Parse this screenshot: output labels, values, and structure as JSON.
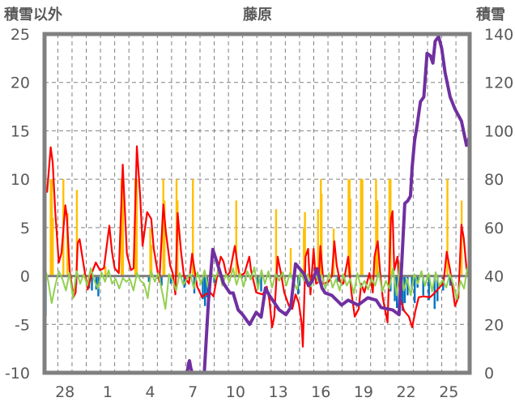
{
  "chart_data": {
    "type": "line",
    "title": "藤原",
    "ylabel": "積雪以外",
    "y2label": "積雪",
    "ylim": [
      -10,
      25
    ],
    "y2lim": [
      0,
      140
    ],
    "xlim_days": [
      -0.93,
      28.97
    ],
    "grid": true,
    "yticks": [
      25,
      20,
      15,
      10,
      5,
      0,
      -5,
      -10
    ],
    "y2ticks": [
      140,
      120,
      100,
      80,
      60,
      40,
      20,
      0
    ],
    "xticks": [
      {
        "day": 0.5,
        "label": "28"
      },
      {
        "day": 3.5,
        "label": "1"
      },
      {
        "day": 6.5,
        "label": "4"
      },
      {
        "day": 9.5,
        "label": "7"
      },
      {
        "day": 12.5,
        "label": "10"
      },
      {
        "day": 15.5,
        "label": "13"
      },
      {
        "day": 18.5,
        "label": "16"
      },
      {
        "day": 21.5,
        "label": "19"
      },
      {
        "day": 24.5,
        "label": "22"
      },
      {
        "day": 27.5,
        "label": "25"
      }
    ],
    "colors": {
      "red": "#ff0000",
      "green": "#92d050",
      "purple": "#7030a0",
      "orange": "#ffc000",
      "blue": "#0070c0",
      "axis": "#808080"
    },
    "series": [
      {
        "name": "orange-bars",
        "kind": "bar",
        "axis": "left",
        "color": "#ffc000",
        "points": [
          [
            -0.5,
            10
          ],
          [
            -0.42,
            10
          ],
          [
            -0.35,
            6.0
          ],
          [
            0.39,
            10
          ],
          [
            0.68,
            6.5
          ],
          [
            1.34,
            8.9
          ],
          [
            3.35,
            1.0
          ],
          [
            4.48,
            10
          ],
          [
            4.58,
            10
          ],
          [
            5.45,
            10
          ],
          [
            5.55,
            10
          ],
          [
            6.5,
            4.9
          ],
          [
            6.58,
            3.2
          ],
          [
            7.42,
            10
          ],
          [
            7.5,
            7.8
          ],
          [
            8.35,
            10
          ],
          [
            8.42,
            7.8
          ],
          [
            9.5,
            10
          ],
          [
            12.55,
            7.8
          ],
          [
            15.35,
            6.9
          ],
          [
            16.38,
            2.9
          ],
          [
            17.3,
            4.9
          ],
          [
            17.38,
            6.6
          ],
          [
            18.3,
            6.9
          ],
          [
            18.5,
            10
          ],
          [
            18.55,
            8.5
          ],
          [
            19.4,
            4.9
          ],
          [
            20.45,
            10
          ],
          [
            20.52,
            10
          ],
          [
            20.58,
            8
          ],
          [
            21.32,
            10
          ],
          [
            21.42,
            10
          ],
          [
            22.38,
            10
          ],
          [
            22.48,
            7.8
          ],
          [
            23.32,
            10
          ],
          [
            23.4,
            10
          ],
          [
            27.4,
            10
          ],
          [
            28.4,
            7.8
          ]
        ]
      },
      {
        "name": "blue-bars",
        "kind": "bar",
        "axis": "left",
        "color": "#0070c0",
        "points": [
          [
            -0.9,
            -5.0
          ],
          [
            -0.85,
            -4.1
          ],
          [
            1.3,
            -0.9
          ],
          [
            2.2,
            -1.3
          ],
          [
            2.4,
            -1.5
          ],
          [
            2.7,
            -1.4
          ],
          [
            2.85,
            -2.1
          ],
          [
            6.4,
            -0.6
          ],
          [
            7.3,
            -1.0
          ],
          [
            7.95,
            -0.8
          ],
          [
            8.9,
            -1.2
          ],
          [
            9.6,
            -1.8
          ],
          [
            10.2,
            -2.4
          ],
          [
            10.35,
            -3.1
          ],
          [
            10.5,
            -2.2
          ],
          [
            11.0,
            -0.7
          ],
          [
            13.2,
            -0.5
          ],
          [
            14.05,
            -0.9
          ],
          [
            14.3,
            -1.6
          ],
          [
            16.9,
            -1.9
          ],
          [
            17.0,
            -1.0
          ],
          [
            19.7,
            -0.6
          ],
          [
            23.4,
            -1.6
          ],
          [
            23.7,
            -2.6
          ],
          [
            23.85,
            -3.3
          ],
          [
            24.05,
            -2.2
          ],
          [
            24.25,
            -3.6
          ],
          [
            24.4,
            -2.8
          ],
          [
            24.6,
            -2.0
          ],
          [
            24.9,
            -1.4
          ],
          [
            25.1,
            -2.8
          ],
          [
            25.3,
            -1.2
          ],
          [
            25.7,
            -2.0
          ],
          [
            26.1,
            -2.5
          ],
          [
            26.5,
            -3.4
          ],
          [
            26.7,
            -2.6
          ],
          [
            27.1,
            -1.5
          ],
          [
            27.6,
            -1.0
          ],
          [
            28.9,
            -1.6
          ]
        ]
      },
      {
        "name": "red-line",
        "kind": "line",
        "axis": "left",
        "color": "#ff0000",
        "points": [
          [
            -0.99,
            9.0
          ],
          [
            -0.75,
            8.7
          ],
          [
            -0.5,
            13.3
          ],
          [
            -0.36,
            11.7
          ],
          [
            -0.18,
            6.7
          ],
          [
            0.07,
            1.4
          ],
          [
            0.26,
            2.4
          ],
          [
            0.53,
            7.3
          ],
          [
            0.64,
            6.1
          ],
          [
            0.83,
            0.6
          ],
          [
            1.1,
            -2.2
          ],
          [
            1.25,
            -1.7
          ],
          [
            1.4,
            3.4
          ],
          [
            1.53,
            3.8
          ],
          [
            1.67,
            2.5
          ],
          [
            1.91,
            0.3
          ],
          [
            2.1,
            -1.4
          ],
          [
            2.39,
            0.3
          ],
          [
            2.67,
            1.4
          ],
          [
            2.96,
            0.6
          ],
          [
            3.24,
            0.8
          ],
          [
            3.62,
            5.2
          ],
          [
            3.81,
            2.5
          ],
          [
            4.0,
            0.8
          ],
          [
            4.29,
            0.3
          ],
          [
            4.57,
            11.5
          ],
          [
            4.86,
            2.3
          ],
          [
            5.14,
            0.6
          ],
          [
            5.33,
            0.8
          ],
          [
            5.56,
            13.4
          ],
          [
            5.8,
            8.1
          ],
          [
            5.96,
            3.1
          ],
          [
            6.28,
            6.6
          ],
          [
            6.57,
            5.9
          ],
          [
            6.75,
            2.8
          ],
          [
            6.94,
            1.1
          ],
          [
            7.14,
            -0.6
          ],
          [
            7.42,
            7.4
          ],
          [
            7.6,
            4.5
          ],
          [
            7.9,
            1.1
          ],
          [
            8.08,
            0.3
          ],
          [
            8.27,
            -1.9
          ],
          [
            8.43,
            6.5
          ],
          [
            8.67,
            2.5
          ],
          [
            8.87,
            0
          ],
          [
            9.22,
            -0.8
          ],
          [
            9.45,
            2.3
          ],
          [
            9.57,
            1.1
          ],
          [
            9.8,
            -1.1
          ],
          [
            10.14,
            -2.2
          ],
          [
            10.37,
            -1.9
          ],
          [
            10.72,
            -1.7
          ],
          [
            10.95,
            -2.1
          ],
          [
            11.3,
            0.8
          ],
          [
            11.46,
            2.0
          ],
          [
            11.65,
            1.5
          ],
          [
            11.88,
            0
          ],
          [
            12.1,
            0.4
          ],
          [
            12.45,
            3.1
          ],
          [
            12.62,
            1.4
          ],
          [
            12.79,
            0
          ],
          [
            13.13,
            0.3
          ],
          [
            13.47,
            2.0
          ],
          [
            13.59,
            0.6
          ],
          [
            13.95,
            -1.7
          ],
          [
            14.41,
            -1.9
          ],
          [
            14.69,
            -1.1
          ],
          [
            14.88,
            -2.5
          ],
          [
            15.07,
            -5.3
          ],
          [
            15.22,
            -4.2
          ],
          [
            15.46,
            2.0
          ],
          [
            15.69,
            0.3
          ],
          [
            15.92,
            -1.7
          ],
          [
            16.26,
            -3.1
          ],
          [
            16.49,
            -3.4
          ],
          [
            16.72,
            -1.9
          ],
          [
            16.95,
            -2.8
          ],
          [
            17.14,
            -4.8
          ],
          [
            17.23,
            -7.3
          ],
          [
            17.42,
            2.0
          ],
          [
            17.6,
            2.8
          ],
          [
            17.77,
            -1.9
          ],
          [
            17.99,
            2.8
          ],
          [
            18.16,
            -0.8
          ],
          [
            18.34,
            -0.6
          ],
          [
            18.46,
            3.1
          ],
          [
            18.69,
            -0.8
          ],
          [
            19.04,
            -0.6
          ],
          [
            19.27,
            0
          ],
          [
            19.45,
            3.6
          ],
          [
            19.61,
            1.1
          ],
          [
            19.85,
            -0.6
          ],
          [
            20.08,
            -0.8
          ],
          [
            20.42,
            2.0
          ],
          [
            20.65,
            -1.7
          ],
          [
            20.88,
            -4.2
          ],
          [
            21.16,
            -3.4
          ],
          [
            21.33,
            -0.8
          ],
          [
            21.56,
            -1.7
          ],
          [
            21.92,
            0.3
          ],
          [
            22.15,
            -1.7
          ],
          [
            22.27,
            2.0
          ],
          [
            22.5,
            3.6
          ],
          [
            22.69,
            0
          ],
          [
            22.85,
            -2.2
          ],
          [
            23.19,
            -4.8
          ],
          [
            23.43,
            5.9
          ],
          [
            23.54,
            6.7
          ],
          [
            23.66,
            0.6
          ],
          [
            23.89,
            2.0
          ],
          [
            24.07,
            -2.2
          ],
          [
            24.35,
            -3.6
          ],
          [
            24.69,
            -4.2
          ],
          [
            24.92,
            -5.3
          ],
          [
            25.15,
            -3.6
          ],
          [
            25.38,
            -2.2
          ],
          [
            25.72,
            -2.1
          ],
          [
            26.18,
            -2.2
          ],
          [
            26.54,
            -1.7
          ],
          [
            26.89,
            -1.1
          ],
          [
            27.12,
            -0.8
          ],
          [
            27.35,
            2.5
          ],
          [
            27.59,
            0.6
          ],
          [
            27.93,
            -3.1
          ],
          [
            28.17,
            -2.2
          ],
          [
            28.39,
            5.3
          ],
          [
            28.55,
            3.9
          ],
          [
            28.74,
            0.8
          ],
          [
            28.92,
            0
          ]
        ]
      },
      {
        "name": "green-line",
        "kind": "line",
        "axis": "left",
        "color": "#92d050",
        "start": -0.93,
        "step": 0.25,
        "values": [
          1.0,
          -0.5,
          -2.8,
          -1.0,
          0.5,
          -0.3,
          -1.5,
          0.3,
          -2.3,
          0.5,
          -0.8,
          0.2,
          -1.0,
          0.8,
          -0.5,
          -1.3,
          0.4,
          -0.6,
          0.6,
          -0.8,
          -0.3,
          -1.3,
          -0.2,
          -0.6,
          -0.3,
          -1.5,
          0.3,
          -0.5,
          -0.8,
          -2.3,
          0.5,
          -0.6,
          0.3,
          -1.5,
          -3.4,
          0.2,
          -0.4,
          -1.5,
          0.3,
          -0.9,
          -0.3,
          0.2,
          -1.3,
          0.4,
          -0.8,
          0.6,
          -1.2,
          0.3,
          -0.3,
          0.7,
          -1.0,
          0.2,
          -0.6,
          0.8,
          -0.9,
          0.3,
          -1.1,
          0.5,
          -0.4,
          0.9,
          -1.4,
          0.6,
          -0.8,
          0.5,
          -1.2,
          0.2,
          -0.5,
          0.4,
          -1.0,
          0.3,
          -0.6,
          -1.4,
          0.5,
          -0.5,
          0.2,
          -1.1,
          0.4,
          -0.6,
          0.1,
          -1.3,
          0.3,
          -1.2,
          -0.3,
          -1.5,
          0.2,
          -1.0,
          -0.3,
          -1.8,
          0.3,
          -1.2,
          -0.5,
          -1.4,
          -0.2,
          -1.0,
          0.4,
          -1.6,
          -0.5,
          -1.3,
          0.8,
          -2.0,
          1.3,
          -1.5,
          -0.3,
          -2.0,
          0.2,
          -0.8,
          0.5,
          -1.0,
          0.3,
          -1.6,
          0.4,
          -1.0,
          -0.4,
          -1.2,
          0.2,
          -0.9,
          -2.4,
          -0.5,
          -1.3,
          1.0
        ]
      },
      {
        "name": "purple-snow-depth",
        "kind": "line",
        "axis": "right",
        "color": "#7030a0",
        "points": [
          [
            -0.93,
            0
          ],
          [
            9.1,
            0
          ],
          [
            9.2,
            4
          ],
          [
            9.26,
            5
          ],
          [
            9.35,
            2
          ],
          [
            9.45,
            0
          ],
          [
            10.3,
            0
          ],
          [
            10.6,
            30
          ],
          [
            10.9,
            51
          ],
          [
            11.18,
            46
          ],
          [
            11.65,
            37
          ],
          [
            12.1,
            33
          ],
          [
            12.33,
            33
          ],
          [
            12.68,
            26
          ],
          [
            13.0,
            24
          ],
          [
            13.49,
            20
          ],
          [
            13.95,
            25
          ],
          [
            14.3,
            23
          ],
          [
            14.6,
            35
          ],
          [
            14.88,
            32
          ],
          [
            15.57,
            26
          ],
          [
            16.04,
            24
          ],
          [
            16.38,
            27
          ],
          [
            16.72,
            45
          ],
          [
            17.3,
            41
          ],
          [
            17.63,
            36
          ],
          [
            17.9,
            38
          ],
          [
            18.23,
            43
          ],
          [
            18.58,
            35
          ],
          [
            18.8,
            33
          ],
          [
            19.27,
            32
          ],
          [
            19.96,
            28
          ],
          [
            20.42,
            30
          ],
          [
            21.12,
            28
          ],
          [
            21.81,
            31
          ],
          [
            22.39,
            30
          ],
          [
            22.73,
            27
          ],
          [
            23.54,
            26
          ],
          [
            24.0,
            24
          ],
          [
            24.12,
            37
          ],
          [
            24.4,
            70
          ],
          [
            24.6,
            71
          ],
          [
            24.8,
            73
          ],
          [
            24.92,
            85
          ],
          [
            25.09,
            96
          ],
          [
            25.26,
            102
          ],
          [
            25.5,
            112
          ],
          [
            25.74,
            114
          ],
          [
            25.97,
            132
          ],
          [
            26.2,
            131
          ],
          [
            26.38,
            128
          ],
          [
            26.54,
            137
          ],
          [
            26.78,
            139
          ],
          [
            27.0,
            134
          ],
          [
            27.24,
            124
          ],
          [
            27.59,
            114
          ],
          [
            27.93,
            109
          ],
          [
            28.39,
            104
          ],
          [
            28.74,
            94
          ],
          [
            28.92,
            97
          ]
        ]
      }
    ]
  }
}
